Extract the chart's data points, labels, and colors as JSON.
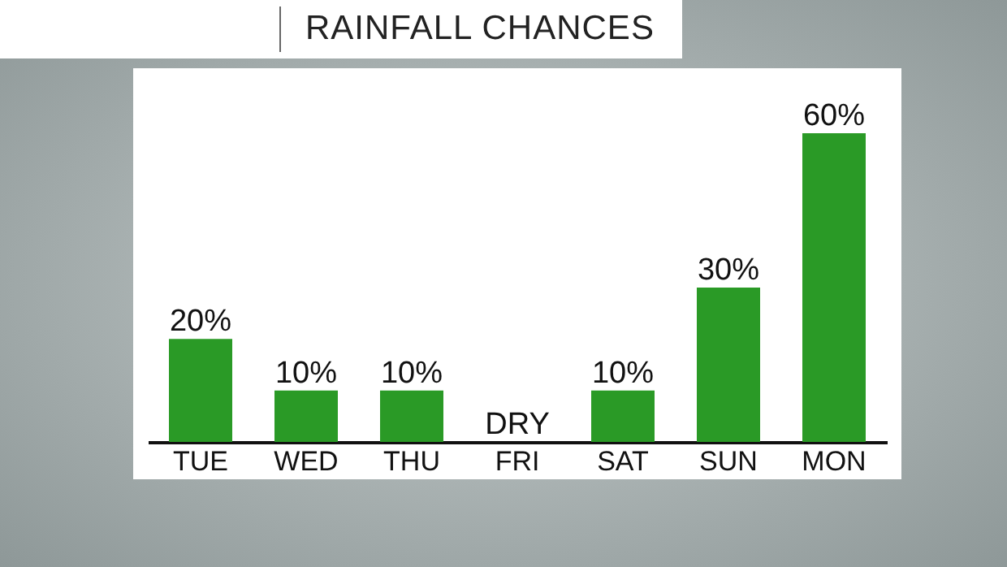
{
  "chart_data": {
    "type": "bar",
    "title": "RAINFALL CHANCES",
    "categories": [
      "TUE",
      "WED",
      "THU",
      "FRI",
      "SAT",
      "SUN",
      "MON"
    ],
    "values": [
      20,
      10,
      10,
      0,
      10,
      30,
      60
    ],
    "value_labels": [
      "20%",
      "10%",
      "10%",
      "DRY",
      "10%",
      "30%",
      "60%"
    ],
    "color": "#2a9a26"
  }
}
